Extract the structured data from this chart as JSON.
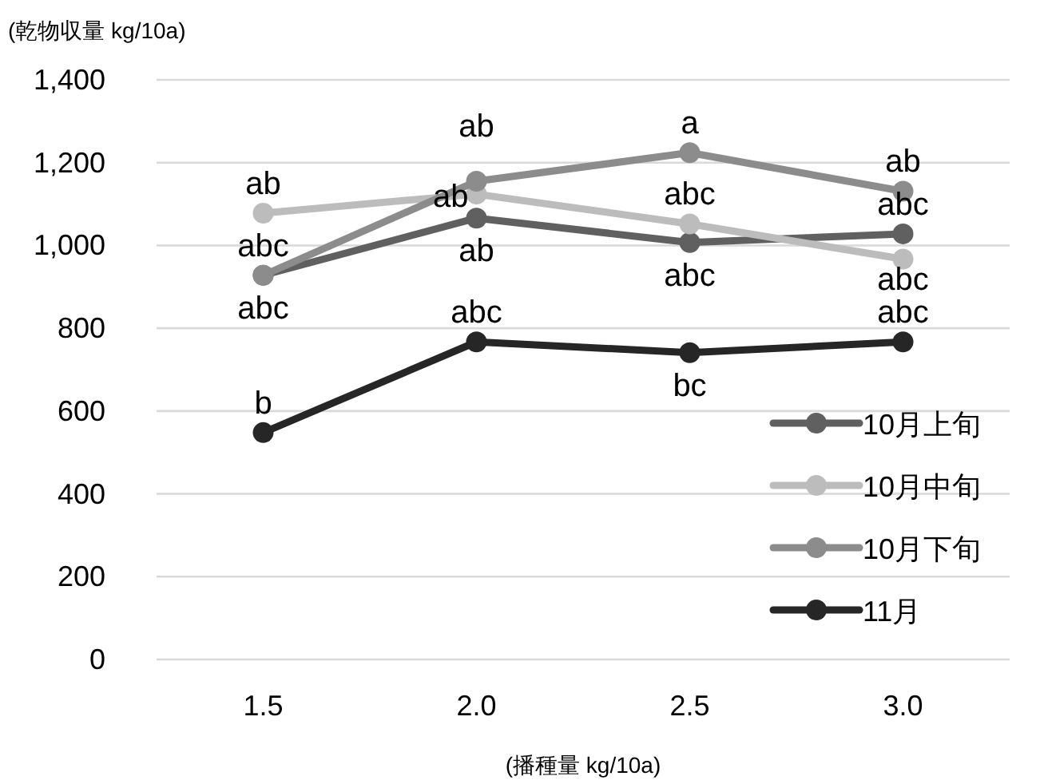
{
  "chart_data": {
    "type": "line",
    "ylabel": "(乾物収量 kg/10a)",
    "xlabel": "(播種量 kg/10a)",
    "categories": [
      "1.5",
      "2.0",
      "2.5",
      "3.0"
    ],
    "series": [
      {
        "name": "10月上旬",
        "color": "#606060",
        "values": [
          928,
          1066,
          1007,
          1028
        ]
      },
      {
        "name": "10月中旬",
        "color": "#bcbcbc",
        "values": [
          1078,
          1124,
          1052,
          967
        ]
      },
      {
        "name": "10月下旬",
        "color": "#8c8c8c",
        "values": [
          928,
          1155,
          1224,
          1131
        ]
      },
      {
        "name": "11月",
        "color": "#262626",
        "values": [
          548,
          767,
          741,
          767
        ]
      }
    ],
    "ylim": [
      0,
      1400
    ],
    "yticks": [
      0,
      200,
      400,
      600,
      800,
      {
        "value": 1000,
        "label": "1,000"
      },
      {
        "value": 1200,
        "label": "1,200"
      },
      {
        "value": 1400,
        "label": "1,400"
      }
    ],
    "grid": "y",
    "legend": "bottom right",
    "marker": "circle",
    "line_style": "solid",
    "annotations": [
      {
        "text": "ab",
        "x": "1.5",
        "y": 1078
      },
      {
        "text": "abc",
        "x": "1.5",
        "y": 928
      },
      {
        "text": "abc",
        "x": "1.5",
        "y": 928
      },
      {
        "text": "b",
        "x": "1.5",
        "y": 548
      },
      {
        "text": "ab",
        "x": "2.0",
        "y": 1155
      },
      {
        "text": "ab",
        "x": "2.0",
        "y": 1124
      },
      {
        "text": "ab",
        "x": "2.0",
        "y": 1066
      },
      {
        "text": "abc",
        "x": "2.0",
        "y": 767
      },
      {
        "text": "a",
        "x": "2.5",
        "y": 1224
      },
      {
        "text": "abc",
        "x": "2.5",
        "y": 1052
      },
      {
        "text": "abc",
        "x": "2.5",
        "y": 1007
      },
      {
        "text": "bc",
        "x": "2.5",
        "y": 741
      },
      {
        "text": "ab",
        "x": "3.0",
        "y": 1131
      },
      {
        "text": "abc",
        "x": "3.0",
        "y": 1028
      },
      {
        "text": "abc",
        "x": "3.0",
        "y": 967
      },
      {
        "text": "abc",
        "x": "3.0",
        "y": 767
      }
    ]
  }
}
